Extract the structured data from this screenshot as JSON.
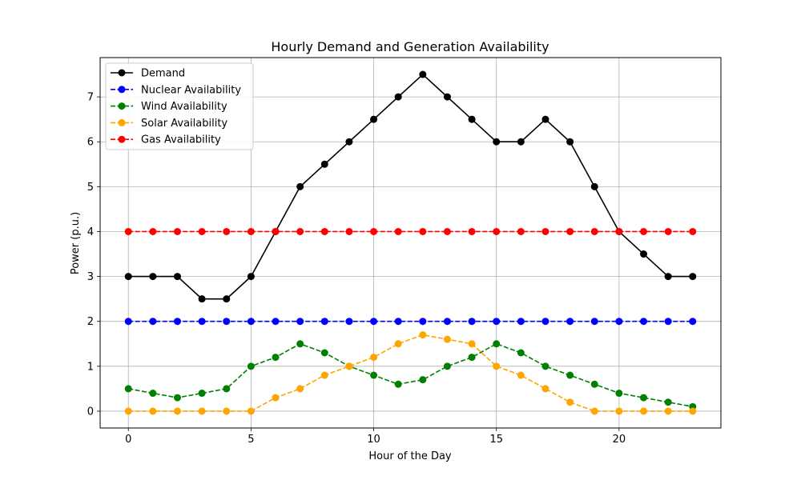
{
  "chart_data": {
    "type": "line",
    "title": "Hourly Demand and Generation Availability",
    "xlabel": "Hour of the Day",
    "ylabel": "Power (p.u.)",
    "xlim": [
      -1.15,
      24.15
    ],
    "ylim": [
      -0.375,
      7.875
    ],
    "xticks": [
      0,
      5,
      10,
      15,
      20
    ],
    "yticks": [
      0,
      1,
      2,
      3,
      4,
      5,
      6,
      7
    ],
    "grid": true,
    "legend_position": "top-left",
    "x": [
      0,
      1,
      2,
      3,
      4,
      5,
      6,
      7,
      8,
      9,
      10,
      11,
      12,
      13,
      14,
      15,
      16,
      17,
      18,
      19,
      20,
      21,
      22,
      23
    ],
    "series": [
      {
        "name": "Demand",
        "color": "#000000",
        "dashed": false,
        "values": [
          3,
          3,
          3,
          2.5,
          2.5,
          3,
          4,
          5,
          5.5,
          6,
          6.5,
          7,
          7.5,
          7,
          6.5,
          6,
          6,
          6.5,
          6,
          5,
          4,
          3.5,
          3,
          3
        ]
      },
      {
        "name": "Nuclear Availability",
        "color": "#0000ff",
        "dashed": true,
        "values": [
          2,
          2,
          2,
          2,
          2,
          2,
          2,
          2,
          2,
          2,
          2,
          2,
          2,
          2,
          2,
          2,
          2,
          2,
          2,
          2,
          2,
          2,
          2,
          2
        ]
      },
      {
        "name": "Wind Availability",
        "color": "#008000",
        "dashed": true,
        "values": [
          0.5,
          0.4,
          0.3,
          0.4,
          0.5,
          1.0,
          1.2,
          1.5,
          1.3,
          1.0,
          0.8,
          0.6,
          0.7,
          1.0,
          1.2,
          1.5,
          1.3,
          1.0,
          0.8,
          0.6,
          0.4,
          0.3,
          0.2,
          0.1
        ]
      },
      {
        "name": "Solar Availability",
        "color": "#ffa500",
        "dashed": true,
        "values": [
          0,
          0,
          0,
          0,
          0,
          0,
          0.3,
          0.5,
          0.8,
          1.0,
          1.2,
          1.5,
          1.7,
          1.6,
          1.5,
          1.0,
          0.8,
          0.5,
          0.2,
          0,
          0,
          0,
          0,
          0
        ]
      },
      {
        "name": "Gas Availability",
        "color": "#ff0000",
        "dashed": true,
        "values": [
          4,
          4,
          4,
          4,
          4,
          4,
          4,
          4,
          4,
          4,
          4,
          4,
          4,
          4,
          4,
          4,
          4,
          4,
          4,
          4,
          4,
          4,
          4,
          4
        ]
      }
    ]
  }
}
